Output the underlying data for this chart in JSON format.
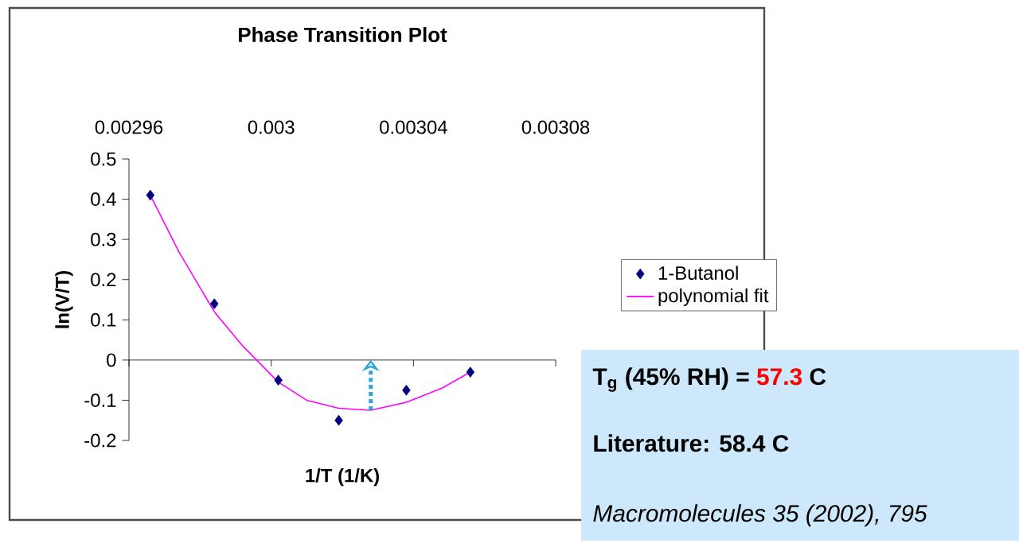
{
  "chart_data": {
    "type": "scatter",
    "title": "Phase Transition Plot",
    "xlabel": "1/T (1/K)",
    "ylabel": "ln(V/T)",
    "xlim": [
      0.00296,
      0.00308
    ],
    "xticks": [
      0.00296,
      0.003,
      0.00304,
      0.00308
    ],
    "ylim": [
      -0.2,
      0.5
    ],
    "yticks": [
      0.5,
      0.4,
      0.3,
      0.2,
      0.1,
      0,
      -0.1,
      -0.2
    ],
    "legend": "right",
    "ref_lines": [
      {
        "axis": "y",
        "value": 0,
        "color": "#000000"
      }
    ],
    "series": [
      {
        "name": "1-Butanol",
        "type": "scatter",
        "marker": "diamond",
        "color": "#000080",
        "x": [
          0.002966,
          0.002984,
          0.003002,
          0.003019,
          0.003038,
          0.003056
        ],
        "values": [
          0.41,
          0.14,
          -0.05,
          -0.15,
          -0.075,
          -0.03
        ]
      },
      {
        "name": "polynomial fit",
        "type": "line",
        "marker": "none",
        "color": "#ff00ff",
        "x": [
          0.002966,
          0.002974,
          0.002984,
          0.002992,
          0.003002,
          0.00301,
          0.003019,
          0.003028,
          0.003038,
          0.003048,
          0.003056
        ],
        "values": [
          0.41,
          0.27,
          0.12,
          0.035,
          -0.055,
          -0.1,
          -0.12,
          -0.125,
          -0.105,
          -0.07,
          -0.03
        ]
      }
    ],
    "annotations": [
      "T$_{g}$ (45% RH) =",
      "57.3",
      "C",
      "Literature: 58.4 C",
      "Macromolecules 35 (2002), 795"
    ]
  }
}
